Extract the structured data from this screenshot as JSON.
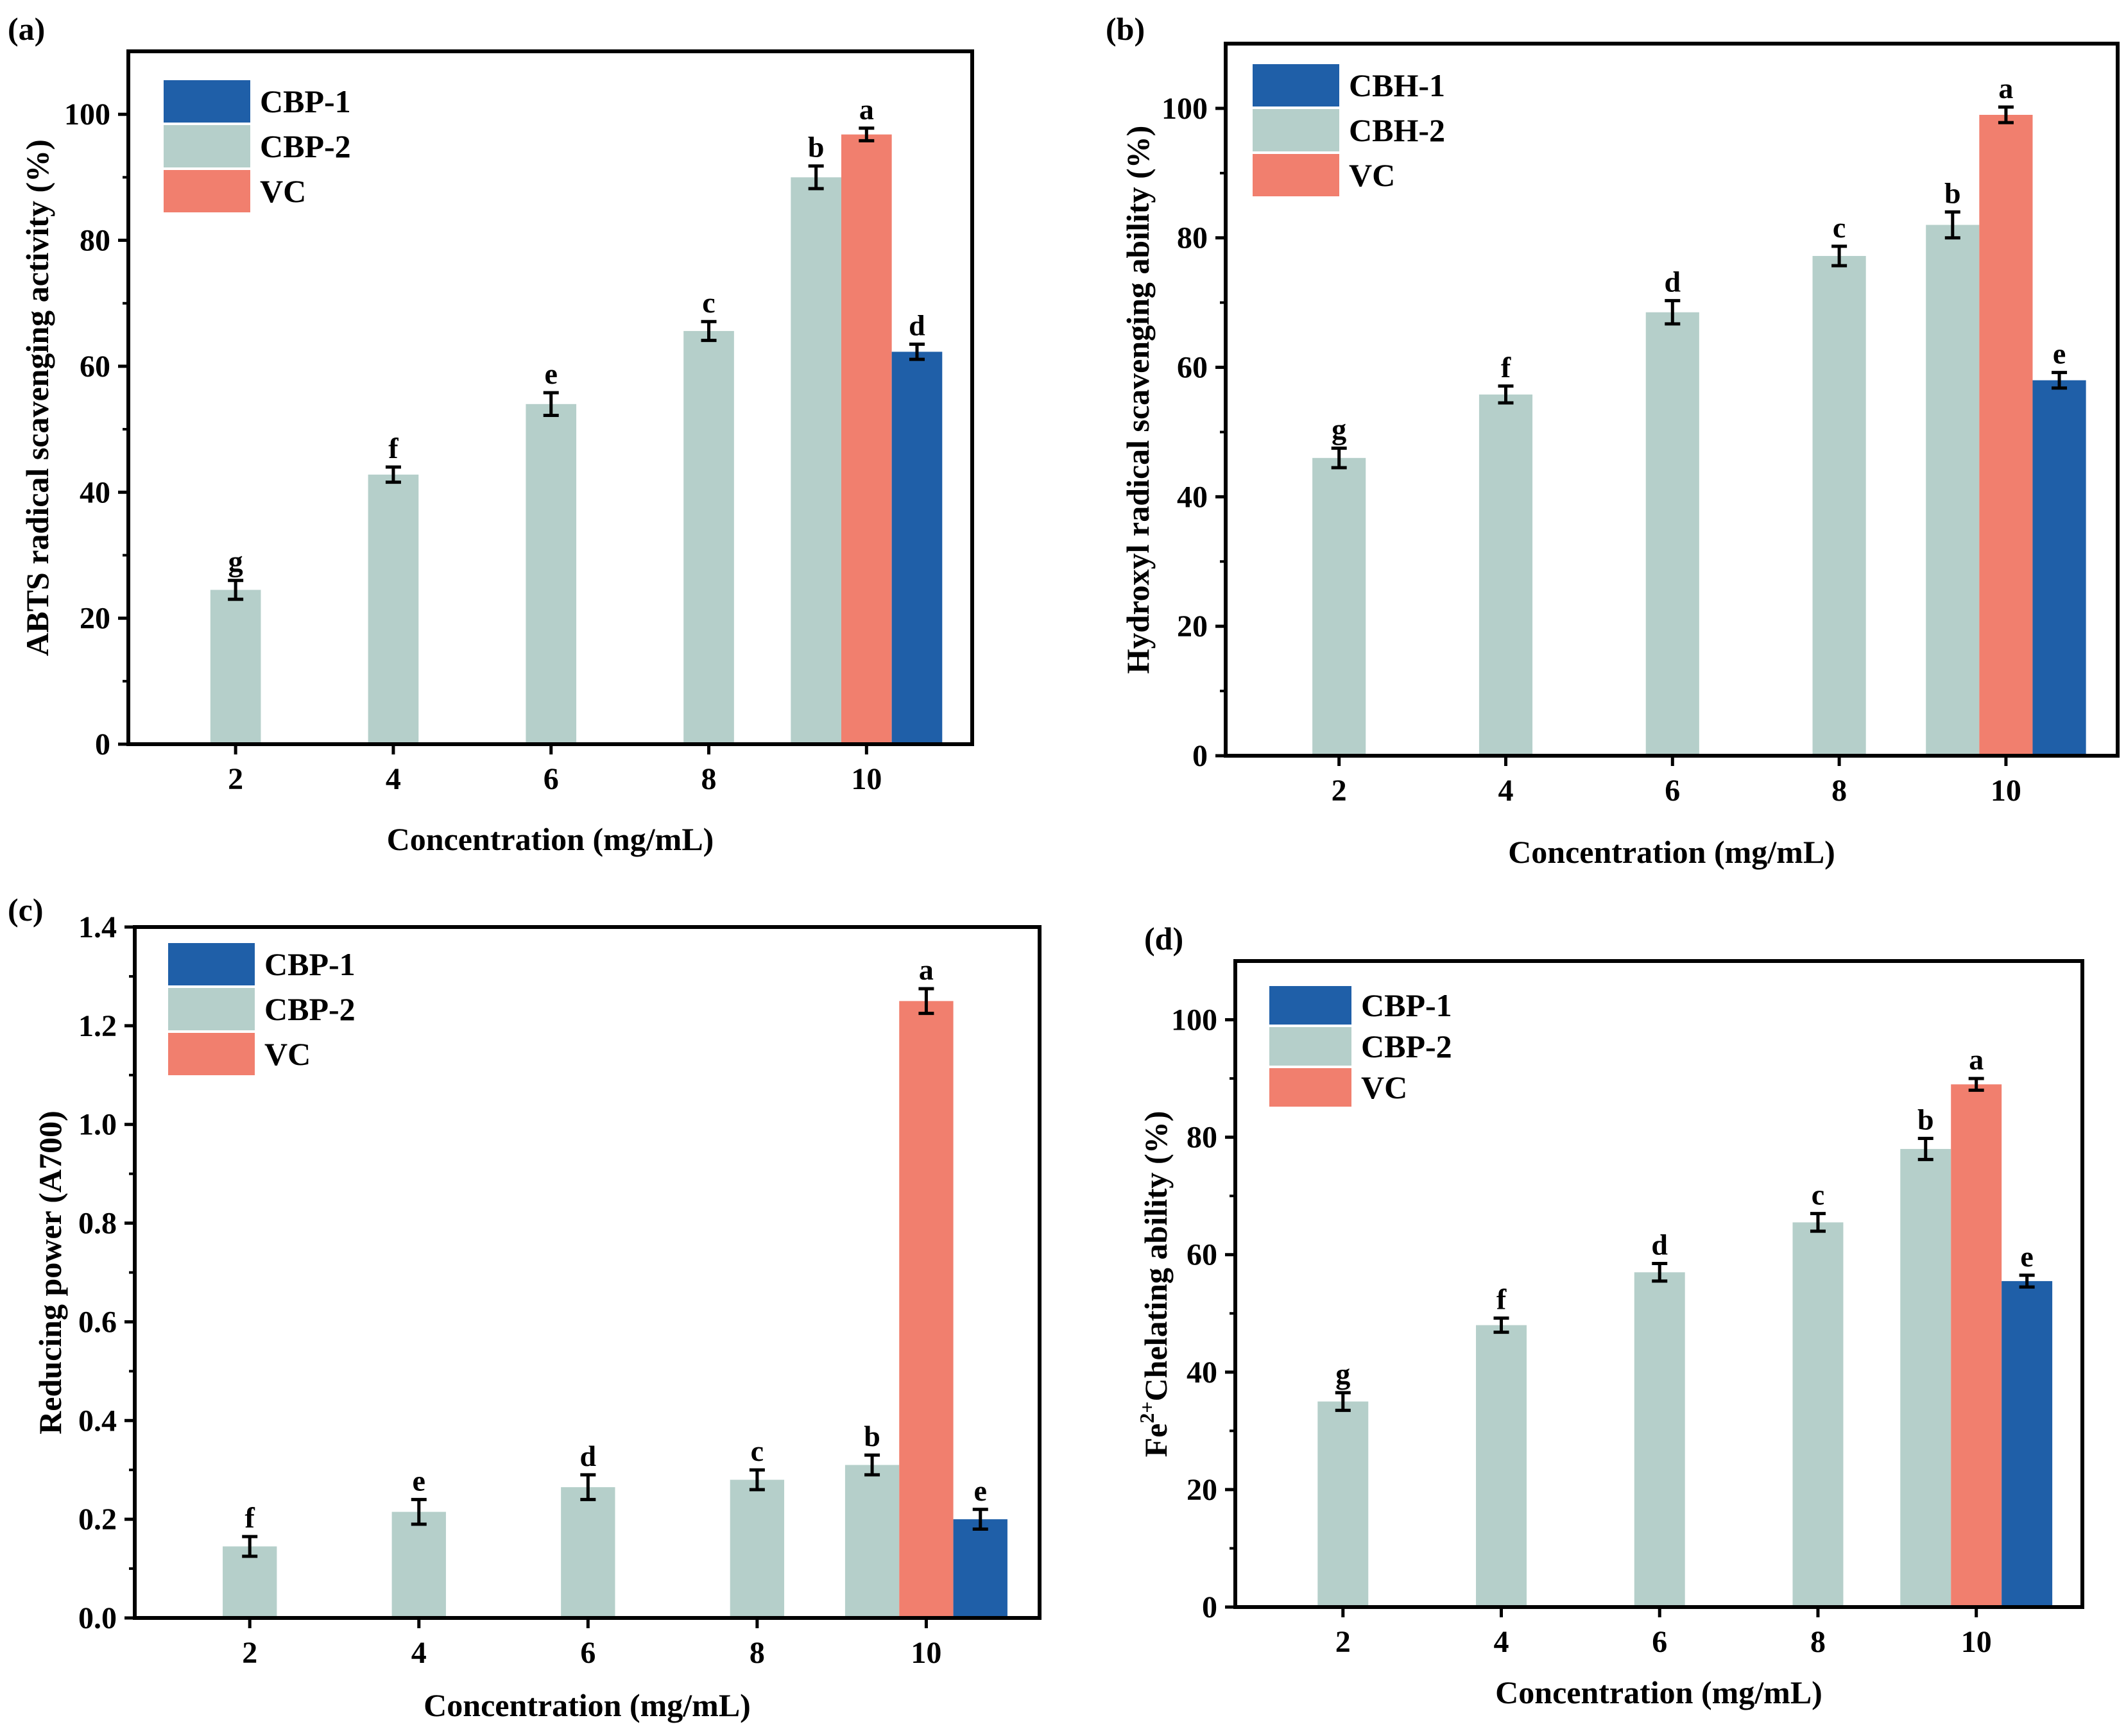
{
  "colors": {
    "series1": "#1f5fa8",
    "series2": "#b5cfca",
    "vc": "#f17f6e",
    "axis": "#000000"
  },
  "chart_data": [
    {
      "panel": "(a)",
      "type": "bar",
      "categories": [
        "2",
        "4",
        "6",
        "8",
        "10"
      ],
      "xlabel": "Concentration (mg/mL)",
      "ylabel": "ABTS radical scavenging activity (%)",
      "ylim": [
        0,
        110
      ],
      "yticks": [
        "0",
        "20",
        "40",
        "60",
        "80",
        "100"
      ],
      "ytick_values": [
        0,
        20,
        40,
        60,
        80,
        100
      ],
      "legend": [
        "CBP-1",
        "CBP-2",
        "VC"
      ],
      "legend_position": "top-left",
      "bars": [
        {
          "category": "2",
          "series": "CBP-2",
          "value": 24.5,
          "error": 1.5,
          "label": "g"
        },
        {
          "category": "4",
          "series": "CBP-2",
          "value": 42.8,
          "error": 1.2,
          "label": "f"
        },
        {
          "category": "6",
          "series": "CBP-2",
          "value": 54.0,
          "error": 1.8,
          "label": "e"
        },
        {
          "category": "8",
          "series": "CBP-2",
          "value": 65.6,
          "error": 1.5,
          "label": "c"
        },
        {
          "category": "10",
          "series": "CBP-2",
          "value": 90.0,
          "error": 1.8,
          "label": "b"
        },
        {
          "category": "10",
          "series": "VC",
          "value": 96.8,
          "error": 1.0,
          "label": "a"
        },
        {
          "category": "10",
          "series": "CBP-1",
          "value": 62.3,
          "error": 1.2,
          "label": "d"
        }
      ]
    },
    {
      "panel": "(b)",
      "type": "bar",
      "categories": [
        "2",
        "4",
        "6",
        "8",
        "10"
      ],
      "xlabel": "Concentration (mg/mL)",
      "ylabel": "Hydroxyl radical scavenging ability (%)",
      "ylim": [
        0,
        110
      ],
      "yticks": [
        "0",
        "20",
        "40",
        "60",
        "80",
        "100"
      ],
      "ytick_values": [
        0,
        20,
        40,
        60,
        80,
        100
      ],
      "legend": [
        "CBH-1",
        "CBH-2",
        "VC"
      ],
      "legend_position": "top-left",
      "bars": [
        {
          "category": "2",
          "series": "CBH-2",
          "value": 46.0,
          "error": 1.5,
          "label": "g"
        },
        {
          "category": "4",
          "series": "CBH-2",
          "value": 55.8,
          "error": 1.3,
          "label": "f"
        },
        {
          "category": "6",
          "series": "CBH-2",
          "value": 68.5,
          "error": 1.8,
          "label": "d"
        },
        {
          "category": "8",
          "series": "CBH-2",
          "value": 77.2,
          "error": 1.5,
          "label": "c"
        },
        {
          "category": "10",
          "series": "CBH-2",
          "value": 82.0,
          "error": 2.0,
          "label": "b"
        },
        {
          "category": "10",
          "series": "VC",
          "value": 99.0,
          "error": 1.2,
          "label": "a"
        },
        {
          "category": "10",
          "series": "CBH-1",
          "value": 58.0,
          "error": 1.2,
          "label": "e"
        }
      ]
    },
    {
      "panel": "(c)",
      "type": "bar",
      "categories": [
        "2",
        "4",
        "6",
        "8",
        "10"
      ],
      "xlabel": "Concentration (mg/mL)",
      "ylabel": "Reducing power (A700)",
      "ylim": [
        0,
        1.4
      ],
      "yticks": [
        "0.0",
        "0.2",
        "0.4",
        "0.6",
        "0.8",
        "1.0",
        "1.2",
        "1.4"
      ],
      "ytick_values": [
        0,
        0.2,
        0.4,
        0.6,
        0.8,
        1.0,
        1.2,
        1.4
      ],
      "legend": [
        "CBP-1",
        "CBP-2",
        "VC"
      ],
      "legend_position": "top-left",
      "bars": [
        {
          "category": "2",
          "series": "CBP-2",
          "value": 0.145,
          "error": 0.02,
          "label": "f"
        },
        {
          "category": "4",
          "series": "CBP-2",
          "value": 0.215,
          "error": 0.025,
          "label": "e"
        },
        {
          "category": "6",
          "series": "CBP-2",
          "value": 0.265,
          "error": 0.025,
          "label": "d"
        },
        {
          "category": "8",
          "series": "CBP-2",
          "value": 0.28,
          "error": 0.02,
          "label": "c"
        },
        {
          "category": "10",
          "series": "CBP-2",
          "value": 0.31,
          "error": 0.02,
          "label": "b"
        },
        {
          "category": "10",
          "series": "VC",
          "value": 1.25,
          "error": 0.025,
          "label": "a"
        },
        {
          "category": "10",
          "series": "CBP-1",
          "value": 0.2,
          "error": 0.02,
          "label": "e"
        }
      ]
    },
    {
      "panel": "(d)",
      "type": "bar",
      "categories": [
        "2",
        "4",
        "6",
        "8",
        "10"
      ],
      "xlabel": "Concentration (mg/mL)",
      "ylabel": "Fe2+ Chelating ability (%)",
      "ylabel_main": "Fe",
      "ylabel_sup": "2+",
      "ylabel_rest": "Chelating ability (%)",
      "ylim": [
        0,
        110
      ],
      "yticks": [
        "0",
        "20",
        "40",
        "60",
        "80",
        "100"
      ],
      "ytick_values": [
        0,
        20,
        40,
        60,
        80,
        100
      ],
      "legend": [
        "CBP-1",
        "CBP-2",
        "VC"
      ],
      "legend_position": "top-left",
      "bars": [
        {
          "category": "2",
          "series": "CBP-2",
          "value": 35.0,
          "error": 1.5,
          "label": "g"
        },
        {
          "category": "4",
          "series": "CBP-2",
          "value": 48.0,
          "error": 1.2,
          "label": "f"
        },
        {
          "category": "6",
          "series": "CBP-2",
          "value": 57.0,
          "error": 1.5,
          "label": "d"
        },
        {
          "category": "8",
          "series": "CBP-2",
          "value": 65.5,
          "error": 1.5,
          "label": "c"
        },
        {
          "category": "10",
          "series": "CBP-2",
          "value": 78.0,
          "error": 1.8,
          "label": "b"
        },
        {
          "category": "10",
          "series": "VC",
          "value": 89.0,
          "error": 1.0,
          "label": "a"
        },
        {
          "category": "10",
          "series": "CBP-1",
          "value": 55.5,
          "error": 1.0,
          "label": "e"
        }
      ]
    }
  ]
}
